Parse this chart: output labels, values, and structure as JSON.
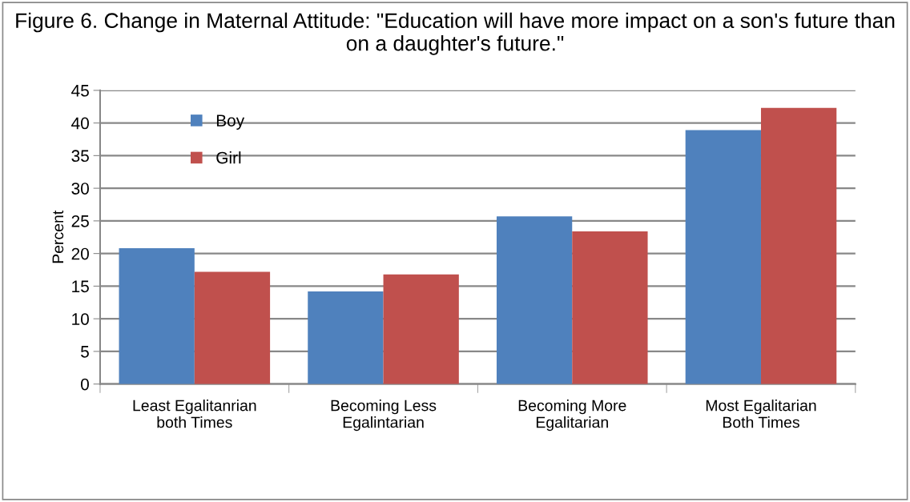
{
  "chart_data": {
    "type": "bar",
    "title": "Figure 6. Change in Maternal Attitude: \"Education will have more impact on a son's future than on a daughter's future.\"",
    "ylabel": "Percent",
    "categories": [
      "Least Egalitanrian\nboth Times",
      "Becoming Less\nEgalintarian",
      "Becoming More\nEgalitarian",
      "Most Egalitarian\nBoth Times"
    ],
    "series": [
      {
        "name": "Boy",
        "color": "#4f81bd",
        "values": [
          20.8,
          14.2,
          25.7,
          38.9
        ]
      },
      {
        "name": "Girl",
        "color": "#c0504d",
        "values": [
          17.2,
          16.8,
          23.4,
          42.3
        ]
      }
    ],
    "ylim": [
      0,
      45
    ],
    "yticks": [
      0,
      5,
      10,
      15,
      20,
      25,
      30,
      35,
      40,
      45
    ],
    "grid": "y",
    "legend": "top left"
  }
}
